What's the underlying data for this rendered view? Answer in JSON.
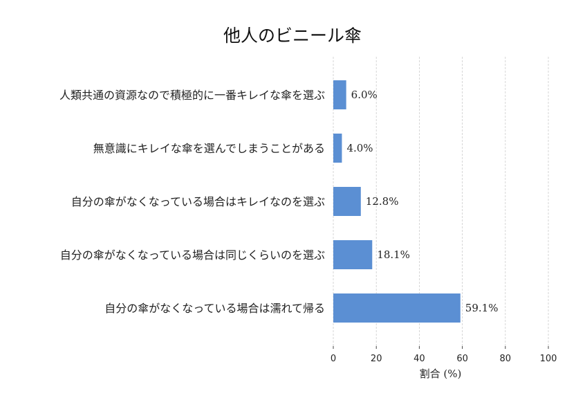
{
  "chart_data": {
    "type": "bar",
    "orientation": "horizontal",
    "title": "他人のビニール傘",
    "xlabel": "割合 (%)",
    "ylabel": "",
    "xlim": [
      0,
      100
    ],
    "xticks": [
      "0",
      "20",
      "40",
      "60",
      "80",
      "100"
    ],
    "grid": "vertical dashed",
    "bar_color": "#5b8fd3",
    "categories": [
      "人類共通の資源なので積極的に一番キレイな傘を選ぶ",
      "無意識にキレイな傘を選んでしまうことがある",
      "自分の傘がなくなっている場合はキレイなのを選ぶ",
      "自分の傘がなくなっている場合は同じくらいのを選ぶ",
      "自分の傘がなくなっている場合は濡れて帰る"
    ],
    "values": [
      6.0,
      4.0,
      12.8,
      18.1,
      59.1
    ],
    "value_labels": [
      "6.0%",
      "4.0%",
      "12.8%",
      "18.1%",
      "59.1%"
    ]
  }
}
